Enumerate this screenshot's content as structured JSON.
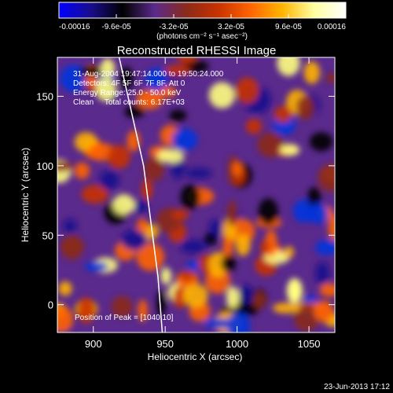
{
  "chart_data": {
    "type": "heatmap",
    "title": "Reconstructed RHESSI Image",
    "colorbar": {
      "tick_labels": [
        "-0.00016",
        "-9.6e-05",
        "-3.2e-05",
        "3.2e-05",
        "9.6e-05",
        "0.00016"
      ],
      "range": [
        -0.00016,
        0.00016
      ],
      "units_label": "(photons cm⁻² s⁻¹ asec⁻²)",
      "colors": [
        "#0000ff",
        "#1a0d8c",
        "#000000",
        "#5a2a8c",
        "#8b2a1a",
        "#c83200",
        "#ff6400",
        "#ffb400",
        "#ffffa0",
        "#ffffff"
      ]
    },
    "xlabel": "Heliocentric X (arcsec)",
    "ylabel": "Heliocentric Y (arcsec)",
    "xlim": [
      875,
      1068
    ],
    "ylim": [
      -20,
      178
    ],
    "xticks": [
      900,
      950,
      1000,
      1050
    ],
    "yticks": [
      0,
      50,
      100,
      150
    ],
    "info_lines": [
      "31-Aug-2004 19:47:14.000 to 19:50:24.000",
      "Detectors: 4F 5F 6F 7F 8F, Att 0",
      "Energy Range: 25.0 - 50.0 keV",
      "Clean     Total counts: 6.17E+03"
    ],
    "peak_text": "Position of Peak = [1040,10]",
    "peak": [
      1040,
      10
    ],
    "limb_line": [
      [
        918,
        178
      ],
      [
        935,
        100
      ],
      [
        945,
        20
      ],
      [
        948,
        -20
      ]
    ],
    "grid": false
  },
  "footer_timestamp": "23-Jun-2013 17:12"
}
